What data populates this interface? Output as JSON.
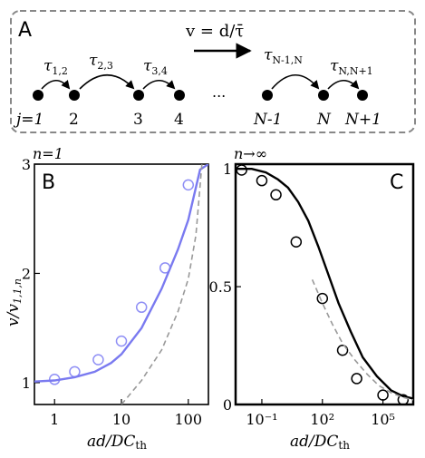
{
  "panel_a": {
    "label": "A",
    "velocity_formula": "v = d/τ̄",
    "dots_label": "...",
    "node_labels": [
      "j=1",
      "2",
      "3",
      "4",
      "N-1",
      "N",
      "N+1"
    ],
    "tau_labels": [
      {
        "main": "τ",
        "sub": "1,2"
      },
      {
        "main": "τ",
        "sub": "2,3"
      },
      {
        "main": "τ",
        "sub": "3,4"
      },
      {
        "main": "τ",
        "sub": "N-1,N"
      },
      {
        "main": "τ",
        "sub": "N,N+1"
      }
    ]
  },
  "chart_data": [
    {
      "panel": "B",
      "type": "scatter",
      "title": "n=1",
      "xlabel": "ad/DC_th",
      "ylabel": "v/v_1,1,n",
      "x_scale": "log",
      "xlim": [
        0.5,
        200
      ],
      "ylim": [
        0.8,
        3.0
      ],
      "x_ticks": [
        1,
        10,
        100
      ],
      "x_tick_labels": [
        "1",
        "10",
        "100"
      ],
      "y_ticks": [
        1,
        2,
        3
      ],
      "y_tick_labels": [
        "1",
        "2",
        "3"
      ],
      "series": [
        {
          "kind": "points",
          "color": "#8f8ff5",
          "x": [
            1,
            2,
            4.5,
            10,
            20,
            45,
            100
          ],
          "y": [
            1.03,
            1.1,
            1.21,
            1.38,
            1.69,
            2.05,
            2.81
          ]
        },
        {
          "kind": "fit_line",
          "color": "#7a7af0",
          "x": [
            0.5,
            1,
            2,
            4,
            7,
            10,
            20,
            40,
            70,
            100,
            150,
            200
          ],
          "y": [
            1.01,
            1.02,
            1.05,
            1.1,
            1.18,
            1.26,
            1.5,
            1.86,
            2.22,
            2.49,
            2.95,
            3.0
          ]
        },
        {
          "kind": "asymptote",
          "color": "#999999",
          "dashed": true,
          "x": [
            10,
            20,
            40,
            70,
            100,
            130,
            160
          ],
          "y": [
            0.8,
            1.02,
            1.3,
            1.65,
            1.95,
            2.35,
            3.0
          ]
        }
      ]
    },
    {
      "panel": "C",
      "type": "scatter",
      "title": "n→∞",
      "xlabel": "ad/DC_th",
      "ylabel": "",
      "x_scale": "log",
      "xlim": [
        -2.3,
        6.5
      ],
      "ylim": [
        0,
        1.02
      ],
      "x_ticks": [
        -1,
        2,
        5
      ],
      "x_tick_labels": [
        "10⁻¹",
        "10²",
        "10⁵"
      ],
      "y_ticks": [
        0,
        0.5,
        1
      ],
      "y_tick_labels": [
        "0",
        "0.5",
        "1"
      ],
      "series": [
        {
          "kind": "points",
          "color": "#000000",
          "x_log10": [
            -2.0,
            -1.0,
            -0.3,
            0.7,
            2.0,
            3.0,
            3.7,
            5.0,
            6.0
          ],
          "y": [
            0.995,
            0.95,
            0.89,
            0.69,
            0.45,
            0.23,
            0.11,
            0.04,
            0.02
          ]
        },
        {
          "kind": "theory_line",
          "color": "#000000",
          "x_log10": [
            -2.3,
            -1.5,
            -0.8,
            -0.2,
            0.3,
            0.8,
            1.3,
            1.8,
            2.3,
            2.8,
            3.4,
            4.0,
            4.7,
            5.4,
            6.0,
            6.5
          ],
          "y": [
            1.0,
            1.0,
            0.985,
            0.955,
            0.92,
            0.86,
            0.78,
            0.67,
            0.55,
            0.43,
            0.31,
            0.2,
            0.12,
            0.06,
            0.035,
            0.025
          ]
        },
        {
          "kind": "asymptote",
          "color": "#999999",
          "dashed": true,
          "x_log10": [
            1.5,
            2.0,
            2.5,
            3.0,
            3.6,
            4.2,
            4.8,
            5.4,
            6.0,
            6.5
          ],
          "y": [
            0.53,
            0.43,
            0.34,
            0.26,
            0.19,
            0.13,
            0.08,
            0.05,
            0.03,
            0.02
          ]
        }
      ]
    }
  ],
  "panel_b": {
    "label": "B",
    "title": "n=1",
    "xlabel_main": "ad/DC",
    "xlabel_sub": "th",
    "ylabel_main": "v/v",
    "ylabel_sub": "1,1,n"
  },
  "panel_c": {
    "label": "C",
    "title": "n→∞",
    "xlabel_main": "ad/DC",
    "xlabel_sub": "th"
  }
}
